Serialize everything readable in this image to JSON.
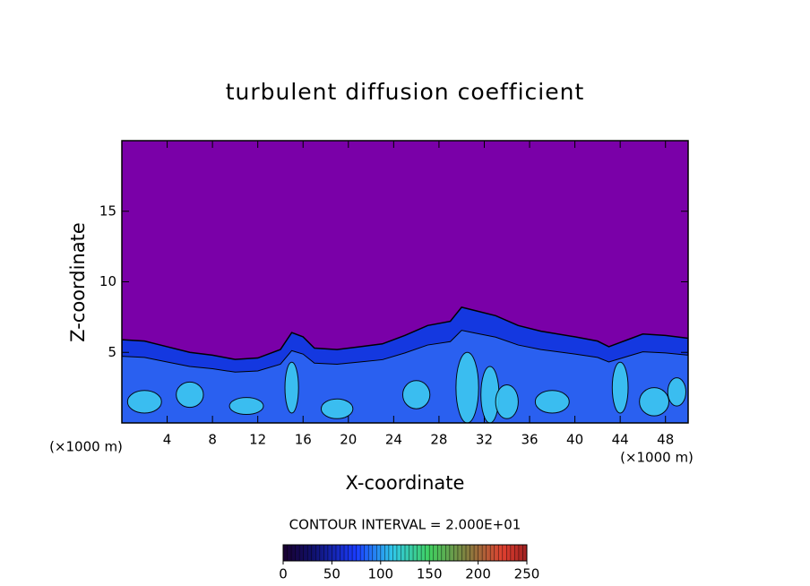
{
  "chart_data": {
    "type": "contour",
    "title": "turbulent diffusion coefficient",
    "x_label": "X-coordinate",
    "y_label": "Z-coordinate",
    "x_unit": "(×1000 m)",
    "y_unit": "(×1000 m)",
    "xlim": [
      0,
      50
    ],
    "xticks": [
      4,
      8,
      12,
      16,
      20,
      24,
      28,
      32,
      36,
      40,
      44,
      48
    ],
    "ylim": [
      0,
      20
    ],
    "yticks": [
      5,
      10,
      15
    ],
    "contour_interval_label": "CONTOUR INTERVAL = 2.000E+01",
    "colorbar": {
      "lim": [
        0,
        250
      ],
      "ticks": [
        0,
        50,
        100,
        150,
        200,
        250
      ]
    }
  }
}
